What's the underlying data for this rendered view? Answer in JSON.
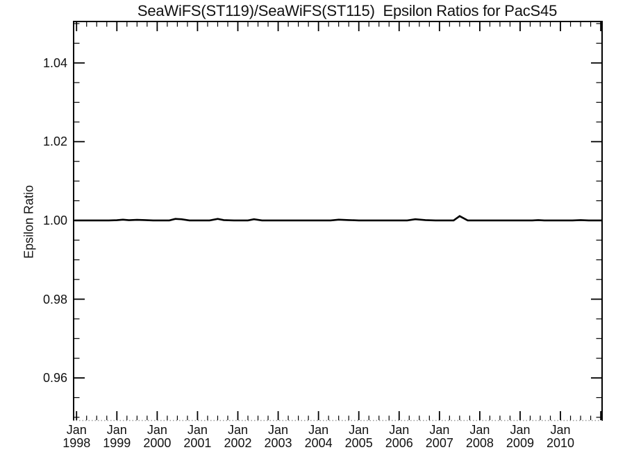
{
  "page": {
    "background": "#ffffff"
  },
  "chart_data": {
    "type": "line",
    "title": "SeaWiFS(ST119)/SeaWiFS(ST115)  Epsilon Ratios for PacS45",
    "xlabel": "",
    "ylabel": "Epsilon Ratio",
    "grid": false,
    "legend": "none",
    "axis_color": "#000000",
    "bottom_axis_style": "dotted",
    "bottom_axis_color": "#999999",
    "line_color": "#000000",
    "xlim": [
      1997.91,
      2011.05
    ],
    "ylim": [
      0.9491,
      1.0507
    ],
    "x_major_ticks": [
      1998,
      1999,
      2000,
      2001,
      2002,
      2003,
      2004,
      2005,
      2006,
      2007,
      2008,
      2009,
      2010
    ],
    "x_tick_labels": [
      {
        "month": "Jan",
        "year": "1998"
      },
      {
        "month": "Jan",
        "year": "1999"
      },
      {
        "month": "Jan",
        "year": "2000"
      },
      {
        "month": "Jan",
        "year": "2001"
      },
      {
        "month": "Jan",
        "year": "2002"
      },
      {
        "month": "Jan",
        "year": "2003"
      },
      {
        "month": "Jan",
        "year": "2004"
      },
      {
        "month": "Jan",
        "year": "2005"
      },
      {
        "month": "Jan",
        "year": "2006"
      },
      {
        "month": "Jan",
        "year": "2007"
      },
      {
        "month": "Jan",
        "year": "2008"
      },
      {
        "month": "Jan",
        "year": "2009"
      },
      {
        "month": "Jan",
        "year": "2010"
      }
    ],
    "x_minor_per_year": 4,
    "y_major_ticks": [
      0.96,
      0.98,
      1.0,
      1.02,
      1.04
    ],
    "y_tick_labels": [
      "0.96",
      "0.98",
      "1.00",
      "1.02",
      "1.04"
    ],
    "y_minor_step": 0.005,
    "series": [
      {
        "name": "epsilon_ratio",
        "x": [
          1997.95,
          1998.8,
          1999.0,
          1999.15,
          1999.3,
          1999.5,
          1999.7,
          1999.9,
          2000.3,
          2000.45,
          2000.6,
          2000.8,
          2001.3,
          2001.5,
          2001.65,
          2001.9,
          2002.25,
          2002.4,
          2002.6,
          2003.5,
          2004.3,
          2004.5,
          2004.75,
          2005.0,
          2006.2,
          2006.4,
          2006.65,
          2006.9,
          2007.35,
          2007.5,
          2007.7,
          2008.5,
          2009.3,
          2009.45,
          2009.6,
          2010.3,
          2010.5,
          2010.7,
          2011.05
        ],
        "y": [
          1.0,
          1.0,
          1.00005,
          1.0002,
          1.00005,
          1.00015,
          1.0001,
          1.0,
          1.0,
          1.0004,
          1.0003,
          1.0,
          1.0,
          1.0004,
          1.0001,
          1.0,
          1.0,
          1.0003,
          1.0,
          1.0,
          1.0,
          1.0002,
          1.0001,
          1.0,
          1.0,
          1.0003,
          1.0001,
          1.0,
          1.0,
          1.0011,
          1.0,
          1.0,
          1.0,
          1.0001,
          1.0,
          1.0,
          1.0001,
          1.0,
          1.0
        ]
      }
    ]
  }
}
